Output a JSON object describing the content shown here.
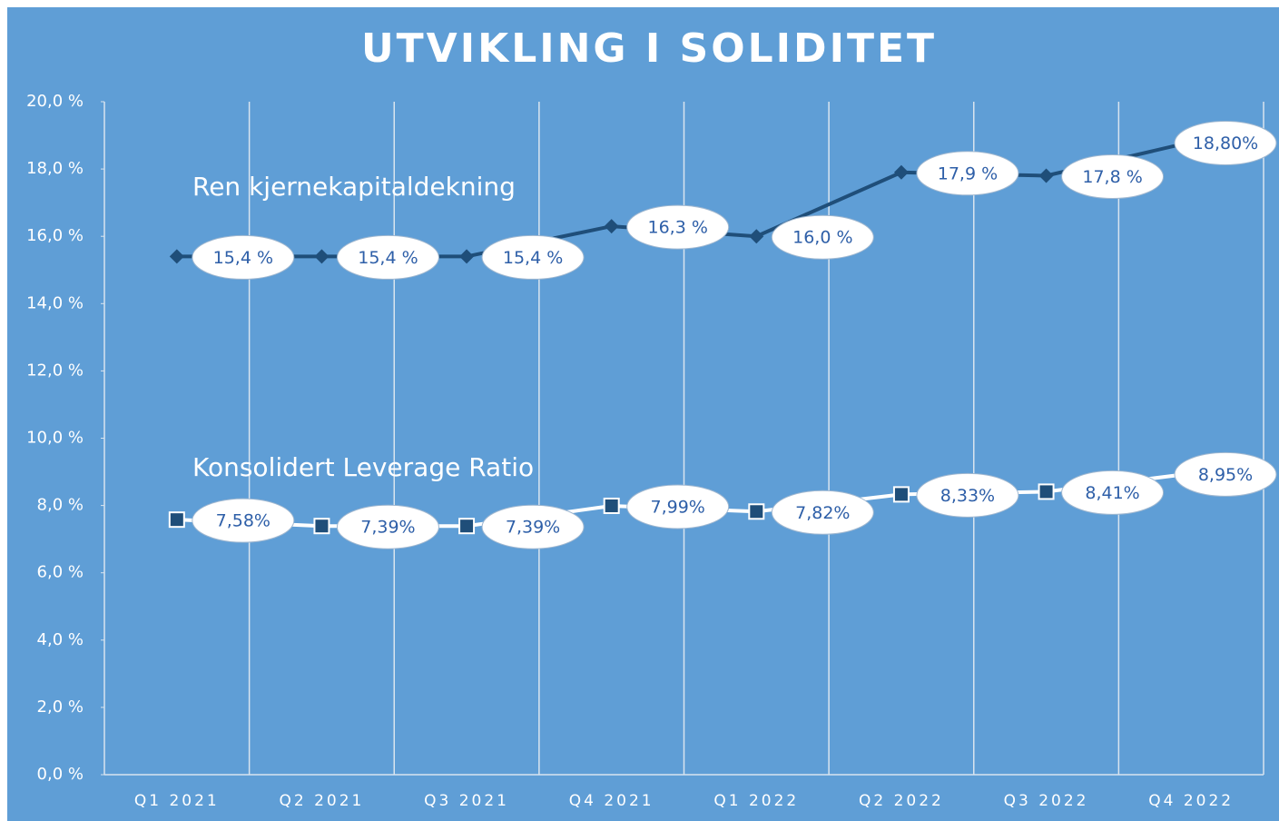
{
  "chart_data": {
    "type": "line",
    "title": "UTVIKLING I SOLIDITET",
    "categories": [
      "Q1 2021",
      "Q2 2021",
      "Q3 2021",
      "Q4 2021",
      "Q1 2022",
      "Q2 2022",
      "Q3 2022",
      "Q4 2022"
    ],
    "series": [
      {
        "name": "Ren kjernekapitaldekning",
        "color": "#1f4e79",
        "marker": "diamond",
        "values": [
          15.4,
          15.4,
          15.4,
          16.3,
          16.0,
          17.9,
          17.8,
          18.8
        ],
        "value_labels": [
          "15,4 %",
          "15,4 %",
          "15,4 %",
          "16,3 %",
          "16,0 %",
          "17,9 %",
          "17,8 %",
          "18,80%"
        ]
      },
      {
        "name": "Konsolidert Leverage Ratio",
        "color": "#ffffff",
        "marker": "square",
        "values": [
          7.58,
          7.39,
          7.39,
          7.99,
          7.82,
          8.33,
          8.41,
          8.95
        ],
        "value_labels": [
          "7,58%",
          "7,39%",
          "7,39%",
          "7,99%",
          "7,82%",
          "8,33%",
          "8,41%",
          "8,95%"
        ]
      }
    ],
    "ylim": [
      0,
      20
    ],
    "yticks": [
      {
        "value": 0,
        "label": "0,0 %"
      },
      {
        "value": 2,
        "label": "2,0 %"
      },
      {
        "value": 4,
        "label": "4,0 %"
      },
      {
        "value": 6,
        "label": "6,0 %"
      },
      {
        "value": 8,
        "label": "8,0 %"
      },
      {
        "value": 10,
        "label": "10,0 %"
      },
      {
        "value": 12,
        "label": "12,0 %"
      },
      {
        "value": 14,
        "label": "14,0 %"
      },
      {
        "value": 16,
        "label": "16,0 %"
      },
      {
        "value": 18,
        "label": "18,0 %"
      },
      {
        "value": 20,
        "label": "20,0 %"
      }
    ],
    "background": "#5f9ed6"
  }
}
